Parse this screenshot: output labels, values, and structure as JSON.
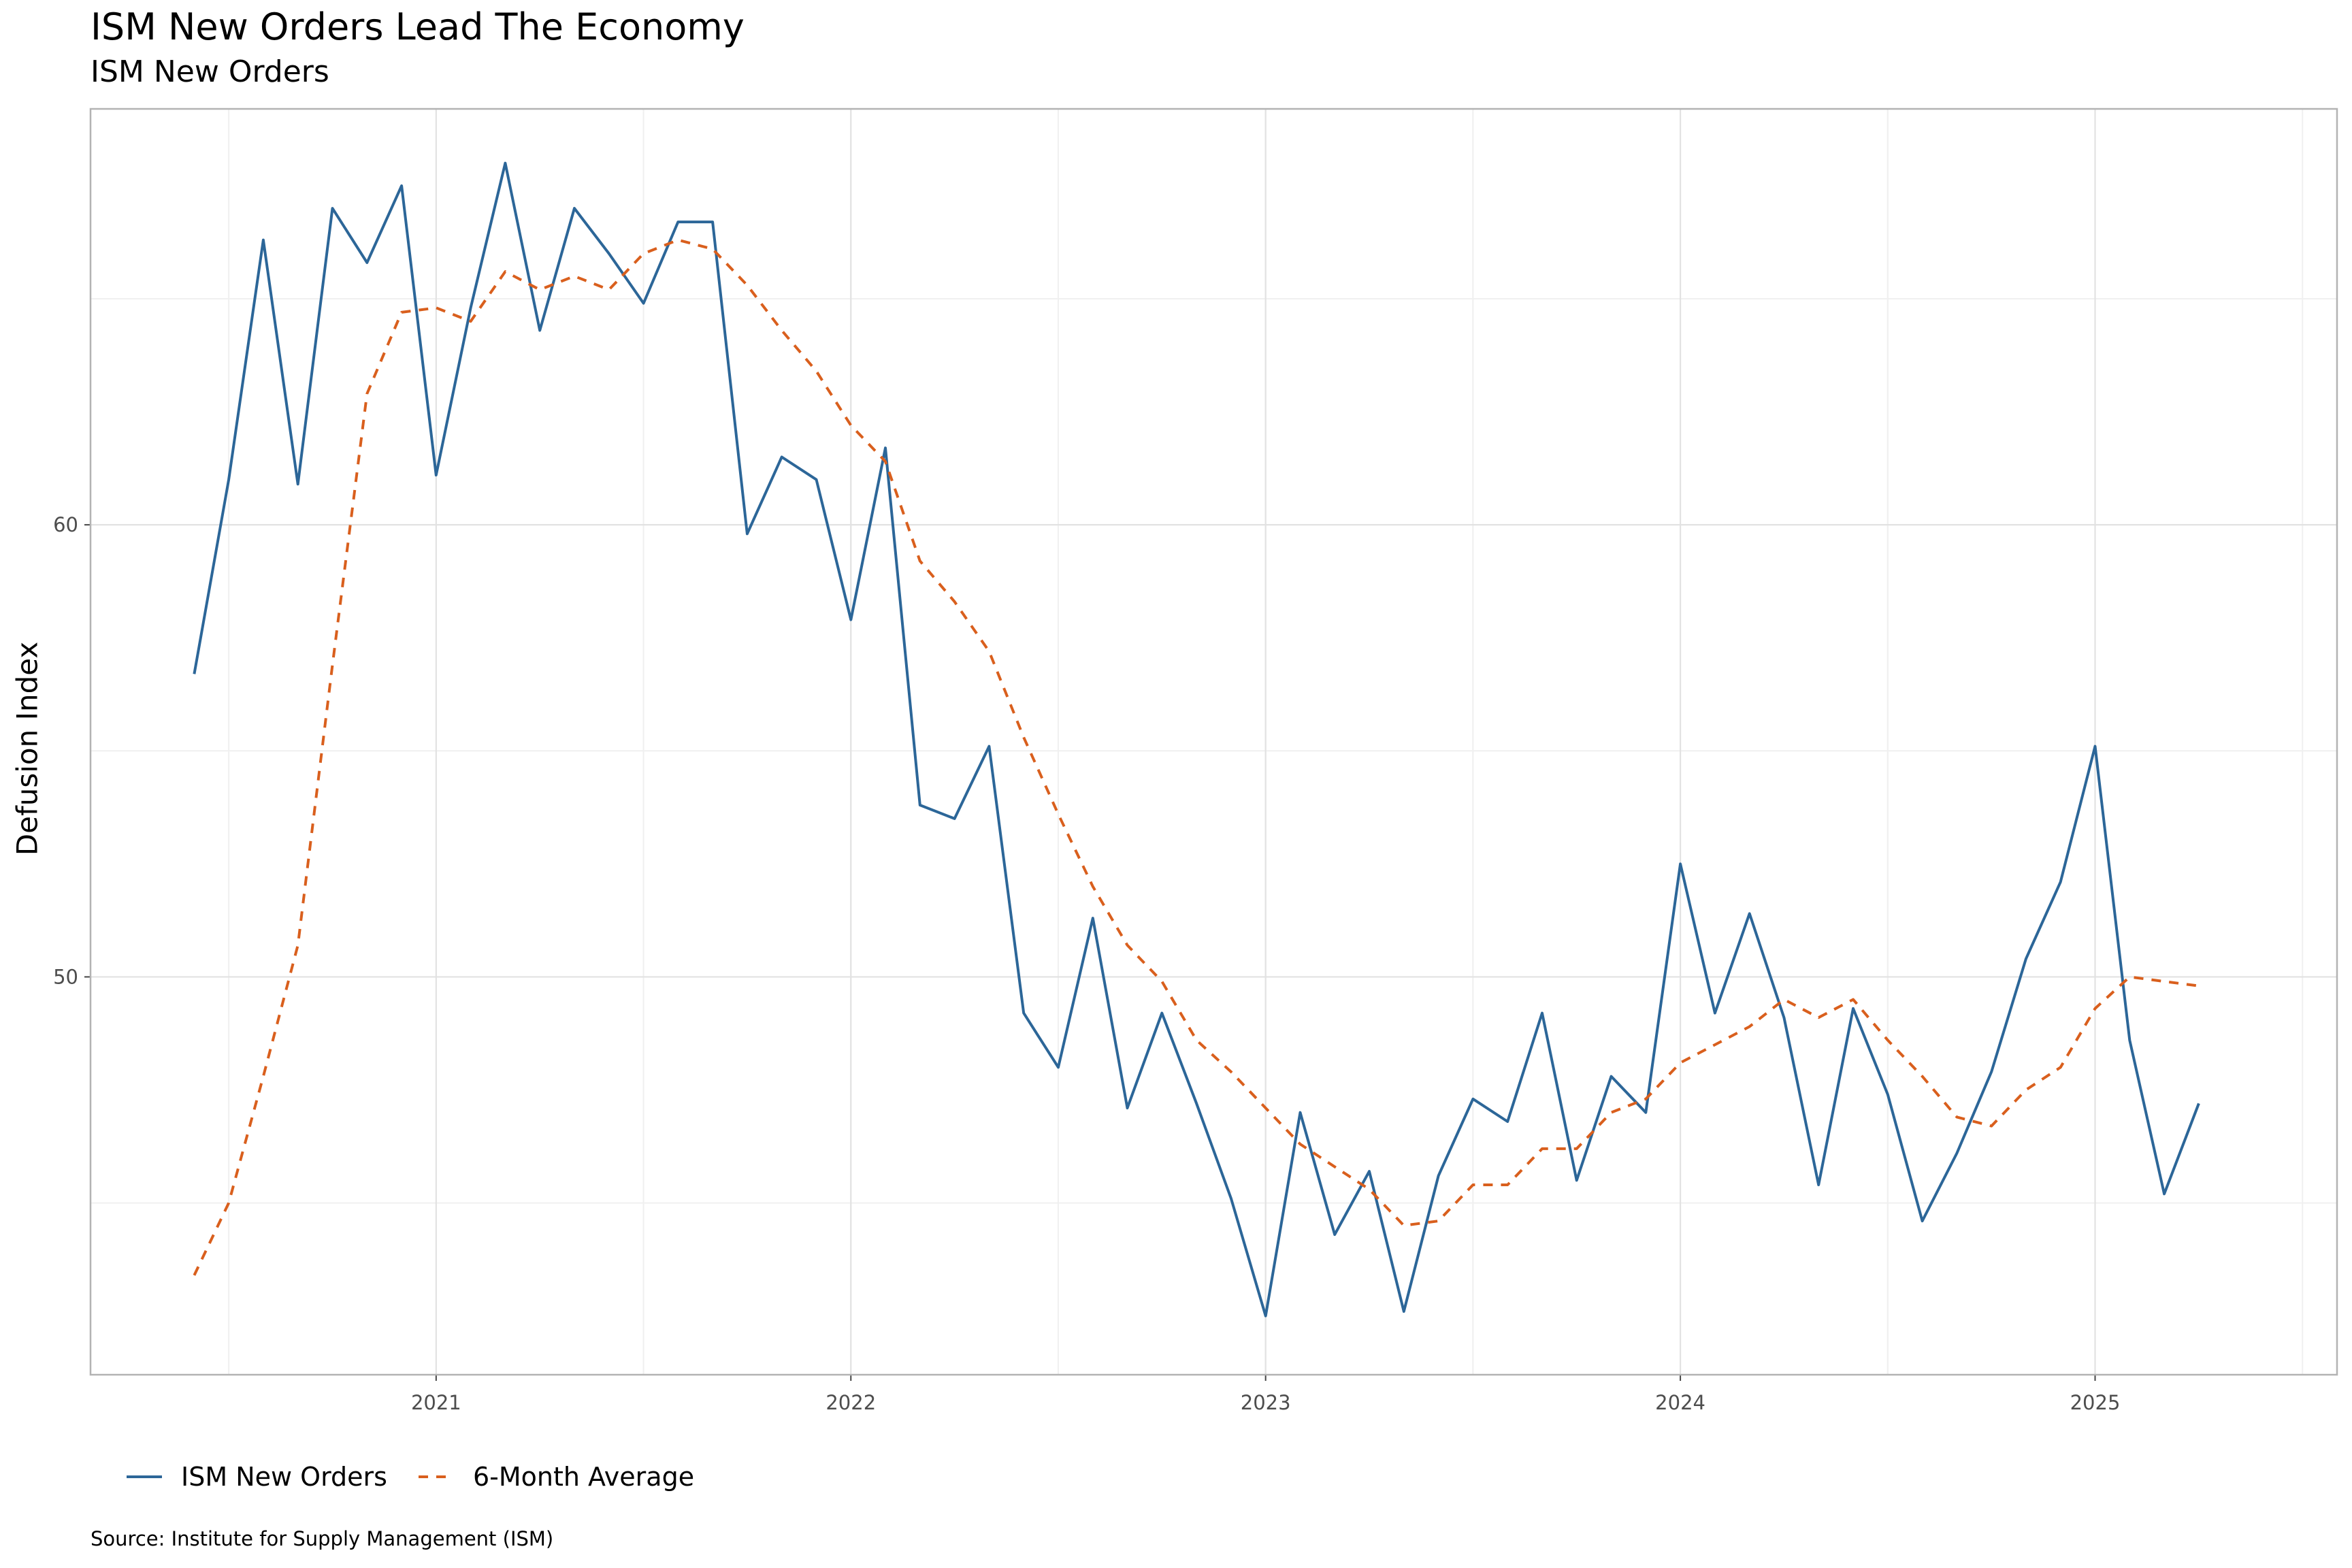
{
  "chart_data": {
    "type": "line",
    "title": "ISM New Orders Lead The Economy",
    "subtitle": "ISM New Orders",
    "xlabel": "",
    "ylabel": "Defusion Index",
    "caption": "Source: Institute for Supply Management (ISM)",
    "x_unit": "month",
    "x_start": "2020-06",
    "x_ticks": [
      "2021",
      "2022",
      "2023",
      "2024",
      "2025"
    ],
    "y_ticks": [
      50,
      60
    ],
    "ylim": [
      41.2,
      69.2
    ],
    "xlim": [
      "2020-03",
      "2025-08"
    ],
    "grid": true,
    "legend_position": "bottom-left",
    "series": [
      {
        "name": "ISM New Orders",
        "color": "#2c6698",
        "dash": "solid",
        "values": [
          56.7,
          61.0,
          66.3,
          60.9,
          67.0,
          65.8,
          67.5,
          61.1,
          64.8,
          68.0,
          64.3,
          67.0,
          66.0,
          64.9,
          66.7,
          66.7,
          59.8,
          61.5,
          61.0,
          57.9,
          61.7,
          53.8,
          53.5,
          55.1,
          49.2,
          48.0,
          51.3,
          47.1,
          49.2,
          47.2,
          45.1,
          42.5,
          47.0,
          44.3,
          45.7,
          42.6,
          45.6,
          47.3,
          46.8,
          49.2,
          45.5,
          47.8,
          47.0,
          52.5,
          49.2,
          51.4,
          49.1,
          45.4,
          49.3,
          47.4,
          44.6,
          46.1,
          47.9,
          50.4,
          52.1,
          55.1,
          48.6,
          45.2,
          47.2
        ]
      },
      {
        "name": "6-Month Average",
        "color": "#d95f1d",
        "dash": "dashed",
        "values": [
          43.4,
          45.0,
          47.8,
          50.7,
          56.9,
          62.9,
          64.7,
          64.8,
          64.5,
          65.6,
          65.2,
          65.5,
          65.2,
          66.0,
          66.3,
          66.1,
          65.3,
          64.3,
          63.4,
          62.2,
          61.4,
          59.2,
          58.3,
          57.2,
          55.3,
          53.6,
          52.0,
          50.7,
          49.9,
          48.6,
          47.9,
          47.1,
          46.3,
          45.8,
          45.3,
          44.5,
          44.6,
          45.4,
          45.4,
          46.2,
          46.2,
          47.0,
          47.3,
          48.1,
          48.5,
          48.9,
          49.5,
          49.1,
          49.5,
          48.6,
          47.8,
          46.9,
          46.7,
          47.5,
          48.0,
          49.3,
          50.0,
          49.9,
          49.8
        ]
      }
    ]
  }
}
